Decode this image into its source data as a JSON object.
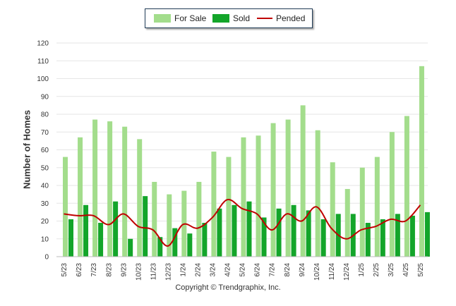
{
  "legend": {
    "for_sale": "For Sale",
    "sold": "Sold",
    "pended": "Pended"
  },
  "footer": {
    "copyright": "Copyright © Trendgraphix, Inc."
  },
  "colors": {
    "for_sale": "#a3dd8c",
    "sold": "#13a52a",
    "pended": "#c00000",
    "grid": "#e6e6e6",
    "axis_text": "#333333"
  },
  "chart_data": {
    "type": "bar",
    "title": "",
    "xlabel": "",
    "ylabel": "Number of Homes",
    "ylim": [
      0,
      120
    ],
    "yticks": [
      0,
      10,
      20,
      30,
      40,
      50,
      60,
      70,
      80,
      90,
      100,
      110,
      120
    ],
    "grid": true,
    "legend_position": "top-center",
    "categories": [
      "5/23",
      "6/23",
      "7/23",
      "8/23",
      "9/23",
      "10/23",
      "11/23",
      "12/23",
      "1/24",
      "2/24",
      "3/24",
      "4/24",
      "5/24",
      "6/24",
      "7/24",
      "8/24",
      "9/24",
      "10/24",
      "11/24",
      "12/24",
      "1/25",
      "2/25",
      "3/25",
      "4/25",
      "5/25"
    ],
    "series": [
      {
        "name": "For Sale",
        "kind": "bar",
        "values": [
          56,
          67,
          77,
          76,
          73,
          66,
          42,
          35,
          37,
          42,
          59,
          56,
          67,
          68,
          75,
          77,
          85,
          71,
          53,
          38,
          50,
          56,
          70,
          79,
          107
        ]
      },
      {
        "name": "Sold",
        "kind": "bar",
        "values": [
          21,
          29,
          19,
          31,
          10,
          34,
          11,
          16,
          13,
          19,
          27,
          29,
          31,
          22,
          27,
          29,
          26,
          21,
          24,
          24,
          19,
          21,
          24,
          23,
          25
        ]
      },
      {
        "name": "Pended",
        "kind": "line",
        "values": [
          24,
          23,
          23,
          18,
          24,
          17,
          15,
          6,
          18,
          16,
          22,
          32,
          27,
          24,
          15,
          24,
          20,
          28,
          16,
          10,
          15,
          17,
          21,
          20,
          29
        ]
      }
    ]
  }
}
